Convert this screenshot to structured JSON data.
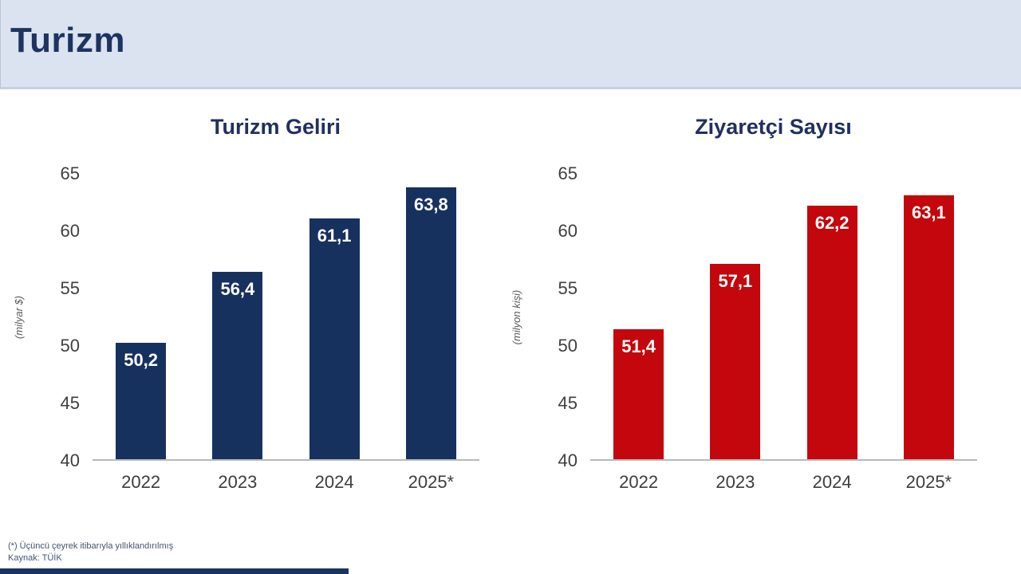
{
  "page": {
    "header_title": "Turizm",
    "footnote_line1": "(*) Üçüncü çeyrek itibarıyla yıllıklandırılmış",
    "footnote_line2": "Kaynak: TÜİK"
  },
  "colors": {
    "header_bg": "#dbe2f0",
    "header_title_text": "#1d3461",
    "chart_title_text": "#1f3060",
    "navy_bar": "#17315f",
    "red_bar": "#c3070c",
    "bar_label_text": "#ffffff",
    "axis_text": "#3f3f3f",
    "footnote_text": "#44546a"
  },
  "chart_data": [
    {
      "type": "bar",
      "title": "Turizm Geliri",
      "ylabel": "(milyar $)",
      "xlabel": "",
      "categories": [
        "2022",
        "2023",
        "2024",
        "2025*"
      ],
      "values": [
        50.2,
        56.4,
        61.1,
        63.8
      ],
      "value_labels": [
        "50,2",
        "56,4",
        "61,1",
        "63,8"
      ],
      "ylim": [
        40,
        65
      ],
      "yticks": [
        40,
        45,
        50,
        55,
        60,
        65
      ],
      "bar_color": "#17315f",
      "label_color": "#ffffff",
      "grid": false,
      "legend": null
    },
    {
      "type": "bar",
      "title": "Ziyaretçi Sayısı",
      "ylabel": "(milyon kişi)",
      "xlabel": "",
      "categories": [
        "2022",
        "2023",
        "2024",
        "2025*"
      ],
      "values": [
        51.4,
        57.1,
        62.2,
        63.1
      ],
      "value_labels": [
        "51,4",
        "57,1",
        "62,2",
        "63,1"
      ],
      "ylim": [
        40,
        65
      ],
      "yticks": [
        40,
        45,
        50,
        55,
        60,
        65
      ],
      "bar_color": "#c3070c",
      "label_color": "#ffffff",
      "grid": false,
      "legend": null
    }
  ]
}
